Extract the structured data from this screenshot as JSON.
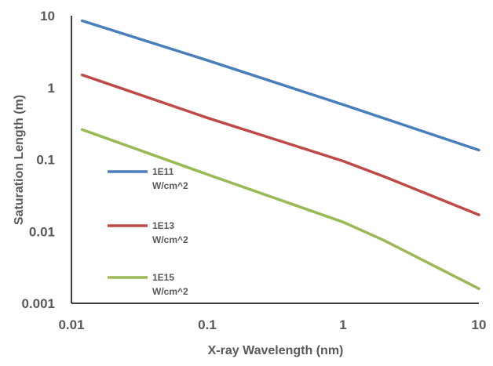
{
  "chart_data": {
    "type": "line",
    "title": "",
    "xlabel": "X-ray Wavelength (nm)",
    "ylabel": "Saturation Length (m)",
    "x_scale": "log",
    "y_scale": "log",
    "xlim": [
      0.01,
      10
    ],
    "ylim": [
      0.001,
      10
    ],
    "x_ticks": [
      0.01,
      0.1,
      1,
      10
    ],
    "x_tick_labels": [
      "0.01",
      "0.1",
      "1",
      "10"
    ],
    "y_ticks": [
      0.001,
      0.01,
      0.1,
      1,
      10
    ],
    "y_tick_labels": [
      "0.001",
      "0.01",
      "0.1",
      "1",
      "10"
    ],
    "grid": false,
    "legend_position": "left",
    "series": [
      {
        "name": "1E11 W/cm^2",
        "color": "#4a7ebb",
        "points": [
          [
            0.012,
            8.5
          ],
          [
            0.1,
            2.4
          ],
          [
            1,
            0.58
          ],
          [
            10,
            0.135
          ]
        ]
      },
      {
        "name": "1E13 W/cm^2",
        "color": "#be4b48",
        "points": [
          [
            0.012,
            1.5
          ],
          [
            0.1,
            0.38
          ],
          [
            1,
            0.095
          ],
          [
            2,
            0.058
          ],
          [
            10,
            0.017
          ]
        ]
      },
      {
        "name": "1E15 W/cm^2",
        "color": "#98b954",
        "points": [
          [
            0.012,
            0.26
          ],
          [
            0.1,
            0.062
          ],
          [
            1,
            0.0135
          ],
          [
            2,
            0.0075
          ],
          [
            10,
            0.0016
          ]
        ]
      }
    ]
  }
}
